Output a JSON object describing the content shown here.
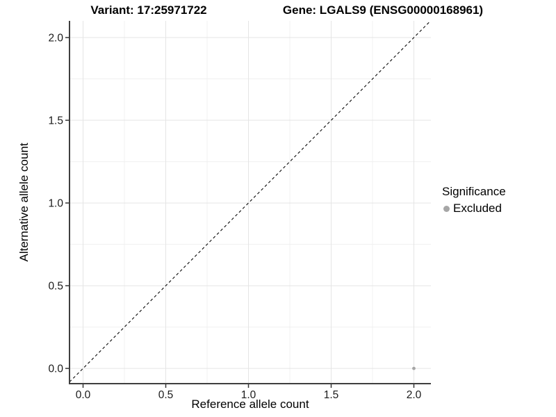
{
  "titles": {
    "variant": "Variant: 17:25971722",
    "gene": "Gene: LGALS9 (ENSG00000168961)"
  },
  "legend": {
    "title": "Significance",
    "entries": [
      {
        "label": "Excluded",
        "color": "#a6a6a6"
      }
    ],
    "position": "right"
  },
  "chart_data": {
    "type": "scatter",
    "title": "Variant: 17:25971722    Gene: LGALS9 (ENSG00000168961)",
    "xlabel": "Reference allele count",
    "ylabel": "Alternative allele count",
    "xlim": [
      -0.082,
      2.103
    ],
    "ylim": [
      -0.092,
      2.101
    ],
    "x_ticks": [
      0.0,
      0.5,
      1.0,
      1.5,
      2.0
    ],
    "y_ticks": [
      0.0,
      0.5,
      1.0,
      1.5,
      2.0
    ],
    "x_tick_labels": [
      "0.0",
      "0.5",
      "1.0",
      "1.5",
      "2.0"
    ],
    "y_tick_labels": [
      "0.0",
      "0.5",
      "1.0",
      "1.5",
      "2.0"
    ],
    "grid": "major+minor",
    "minor_tick_step": 0.25,
    "identity_line": {
      "slope": 1,
      "intercept": 0,
      "style": "dashed",
      "color": "#1a1a1a"
    },
    "series": [
      {
        "name": "Excluded",
        "color": "#a6a6a6",
        "points": [
          {
            "x": 2.0,
            "y": 0.0
          }
        ]
      }
    ],
    "colors": {
      "grid_major": "#e5e5e5",
      "grid_minor": "#f0f0f0",
      "axis_line": "#3f3f3f",
      "tick_mark": "#333333",
      "tick_label": "#1a1a1a"
    },
    "legend_position": "right"
  }
}
